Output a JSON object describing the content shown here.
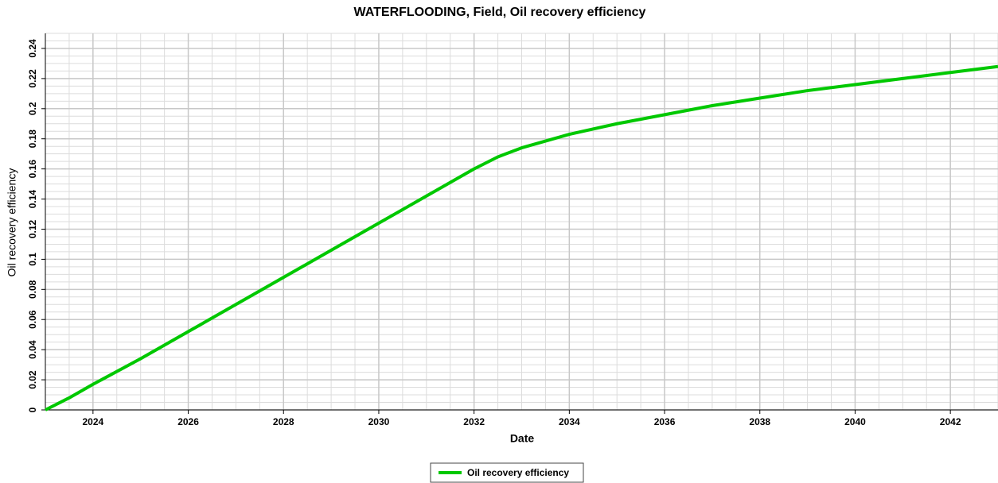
{
  "chart_data": {
    "type": "line",
    "title": "WATERFLOODING, Field, Oil recovery efficiency",
    "x_label": "Date",
    "y_label": "Oil recovery efficiency",
    "x": [
      2023,
      2023.5,
      2024,
      2025,
      2026,
      2027,
      2028,
      2029,
      2030,
      2031,
      2032,
      2032.5,
      2033,
      2034,
      2035,
      2036,
      2037,
      2038,
      2039,
      2040,
      2041,
      2042,
      2043
    ],
    "series": [
      {
        "name": "Oil recovery efficiency",
        "color": "#00c800",
        "values": [
          0,
          0.008,
          0.017,
          0.034,
          0.052,
          0.07,
          0.088,
          0.106,
          0.124,
          0.142,
          0.16,
          0.168,
          0.174,
          0.183,
          0.19,
          0.196,
          0.202,
          0.207,
          0.212,
          0.216,
          0.22,
          0.224,
          0.228
        ]
      }
    ],
    "xlim": [
      2023,
      2043
    ],
    "xticks": [
      2024,
      2026,
      2028,
      2030,
      2032,
      2034,
      2036,
      2038,
      2040,
      2042
    ],
    "ylim": [
      0,
      0.25
    ],
    "yticks": [
      0,
      0.02,
      0.04,
      0.06,
      0.08,
      0.1,
      0.12,
      0.14,
      0.16,
      0.18,
      0.2,
      0.22,
      0.24
    ],
    "grid": true,
    "legend": "bottom"
  }
}
